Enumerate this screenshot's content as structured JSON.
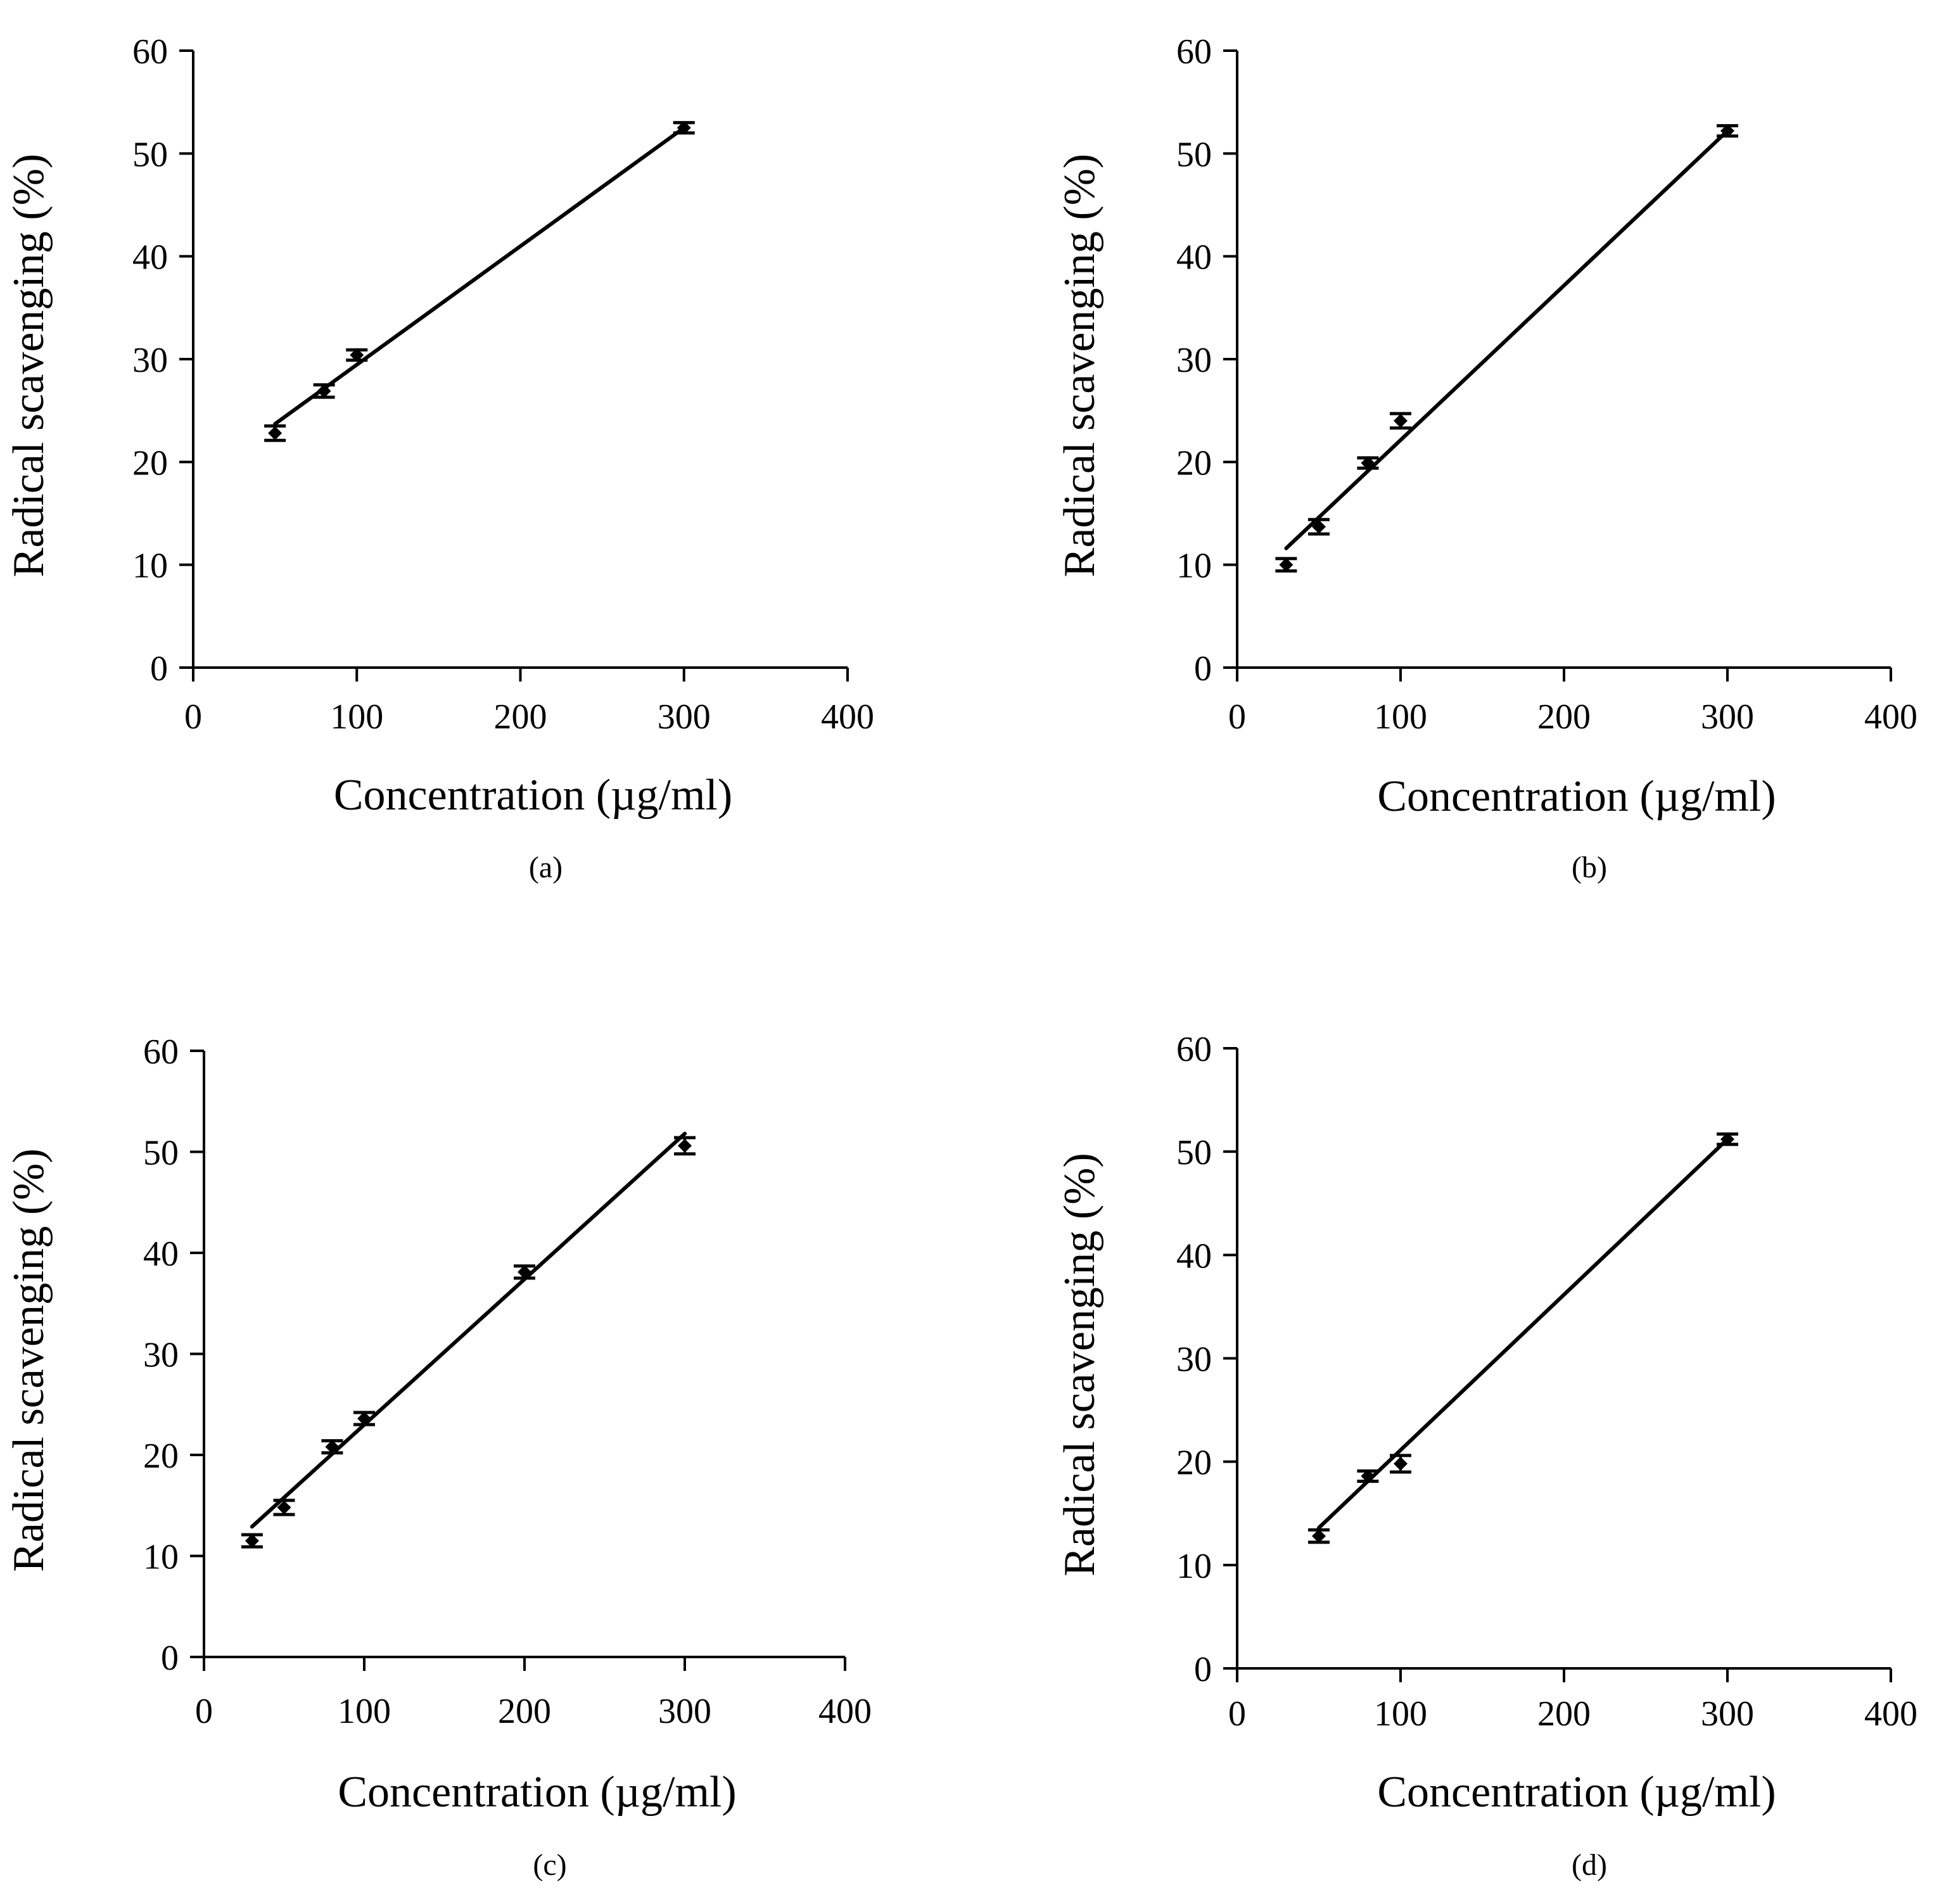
{
  "figure": {
    "colors": {
      "line": "#000000",
      "marker": "#000000",
      "background": "#ffffff"
    }
  },
  "chart_data": [
    {
      "id": "a",
      "type": "scatter",
      "panel_label": "(a)",
      "xlabel": "Concentration (µg/ml)",
      "ylabel": "Radical scavenging (%)",
      "xlim": [
        0,
        400
      ],
      "ylim": [
        0,
        60
      ],
      "xticks": [
        "0",
        "100",
        "200",
        "300",
        "400"
      ],
      "yticks": [
        "0",
        "10",
        "20",
        "30",
        "40",
        "50",
        "60"
      ],
      "points": [
        {
          "x": 50,
          "y": 22.8,
          "err": 0.7
        },
        {
          "x": 80,
          "y": 26.9,
          "err": 0.6
        },
        {
          "x": 100,
          "y": 30.4,
          "err": 0.5
        },
        {
          "x": 300,
          "y": 52.5,
          "err": 0.5
        }
      ],
      "trendline": {
        "x": [
          50,
          300
        ],
        "y": [
          23.7,
          52.5
        ]
      }
    },
    {
      "id": "b",
      "type": "scatter",
      "panel_label": "(b)",
      "xlabel": "Concentration  (µg/ml)",
      "ylabel": "Radical scavenging (%)",
      "xlim": [
        0,
        400
      ],
      "ylim": [
        0,
        60
      ],
      "xticks": [
        "0",
        "100",
        "200",
        "300",
        "400"
      ],
      "yticks": [
        "0",
        "10",
        "20",
        "30",
        "40",
        "50",
        "60"
      ],
      "points": [
        {
          "x": 30,
          "y": 10.0,
          "err": 0.6
        },
        {
          "x": 50,
          "y": 13.7,
          "err": 0.7
        },
        {
          "x": 80,
          "y": 19.9,
          "err": 0.5
        },
        {
          "x": 100,
          "y": 24.0,
          "err": 0.7
        },
        {
          "x": 300,
          "y": 52.2,
          "err": 0.5
        }
      ],
      "trendline": {
        "x": [
          30,
          300
        ],
        "y": [
          11.6,
          52.2
        ]
      }
    },
    {
      "id": "c",
      "type": "scatter",
      "panel_label": "(c)",
      "xlabel": "Concentration  (µg/ml)",
      "ylabel": "Radical scavenging (%)",
      "xlim": [
        0,
        400
      ],
      "ylim": [
        0,
        60
      ],
      "xticks": [
        "0",
        "100",
        "200",
        "300",
        "400"
      ],
      "yticks": [
        "0",
        "10",
        "20",
        "30",
        "40",
        "50",
        "60"
      ],
      "points": [
        {
          "x": 30,
          "y": 11.5,
          "err": 0.6
        },
        {
          "x": 50,
          "y": 14.8,
          "err": 0.7
        },
        {
          "x": 80,
          "y": 20.8,
          "err": 0.6
        },
        {
          "x": 100,
          "y": 23.6,
          "err": 0.6
        },
        {
          "x": 200,
          "y": 38.1,
          "err": 0.6
        },
        {
          "x": 300,
          "y": 50.6,
          "err": 0.8
        }
      ],
      "trendline": {
        "x": [
          30,
          300
        ],
        "y": [
          12.9,
          51.8
        ]
      }
    },
    {
      "id": "d",
      "type": "scatter",
      "panel_label": "(d)",
      "xlabel": "Concentration (µg/ml)",
      "ylabel": "Radical scavenging (%)",
      "xlim": [
        0,
        400
      ],
      "ylim": [
        0,
        60
      ],
      "xticks": [
        "0",
        "100",
        "200",
        "300",
        "400"
      ],
      "yticks": [
        "0",
        "10",
        "20",
        "30",
        "40",
        "50",
        "60"
      ],
      "points": [
        {
          "x": 50,
          "y": 12.8,
          "err": 0.6
        },
        {
          "x": 80,
          "y": 18.6,
          "err": 0.5
        },
        {
          "x": 100,
          "y": 19.8,
          "err": 0.8
        },
        {
          "x": 300,
          "y": 51.2,
          "err": 0.5
        }
      ],
      "trendline": {
        "x": [
          50,
          300
        ],
        "y": [
          13.6,
          51.2
        ]
      }
    }
  ]
}
